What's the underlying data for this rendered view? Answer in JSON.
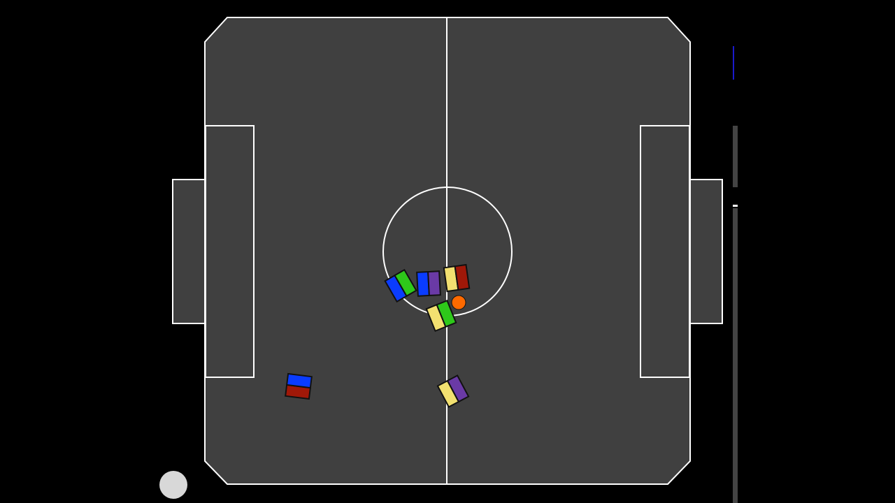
{
  "colors": {
    "background": "#000000",
    "field": "#404040",
    "lines": "#ffffff",
    "ball": "#ff6a00",
    "robot_outline": "#111111",
    "red": "#a01808",
    "blue": "#0a3cff",
    "green": "#2ec81a",
    "purple": "#6a3aa6",
    "yellow": "#f2e070",
    "sidebar_bar": "#444444",
    "sidebar_marker": "#1a1acc",
    "cursor_circle": "#d8d8d8"
  },
  "icons": {
    "field": "soccer-field",
    "ball": "ball-icon",
    "robot": "robot-icon",
    "cursor": "circle-indicator"
  },
  "robots": [
    {
      "id": "robot-1",
      "colors": [
        "blue",
        "green"
      ]
    },
    {
      "id": "robot-2",
      "colors": [
        "blue",
        "purple"
      ]
    },
    {
      "id": "robot-3",
      "colors": [
        "yellow",
        "red"
      ]
    },
    {
      "id": "robot-4",
      "colors": [
        "yellow",
        "green"
      ]
    },
    {
      "id": "robot-5",
      "colors": [
        "red",
        "blue"
      ]
    },
    {
      "id": "robot-6",
      "colors": [
        "yellow",
        "purple"
      ]
    }
  ]
}
